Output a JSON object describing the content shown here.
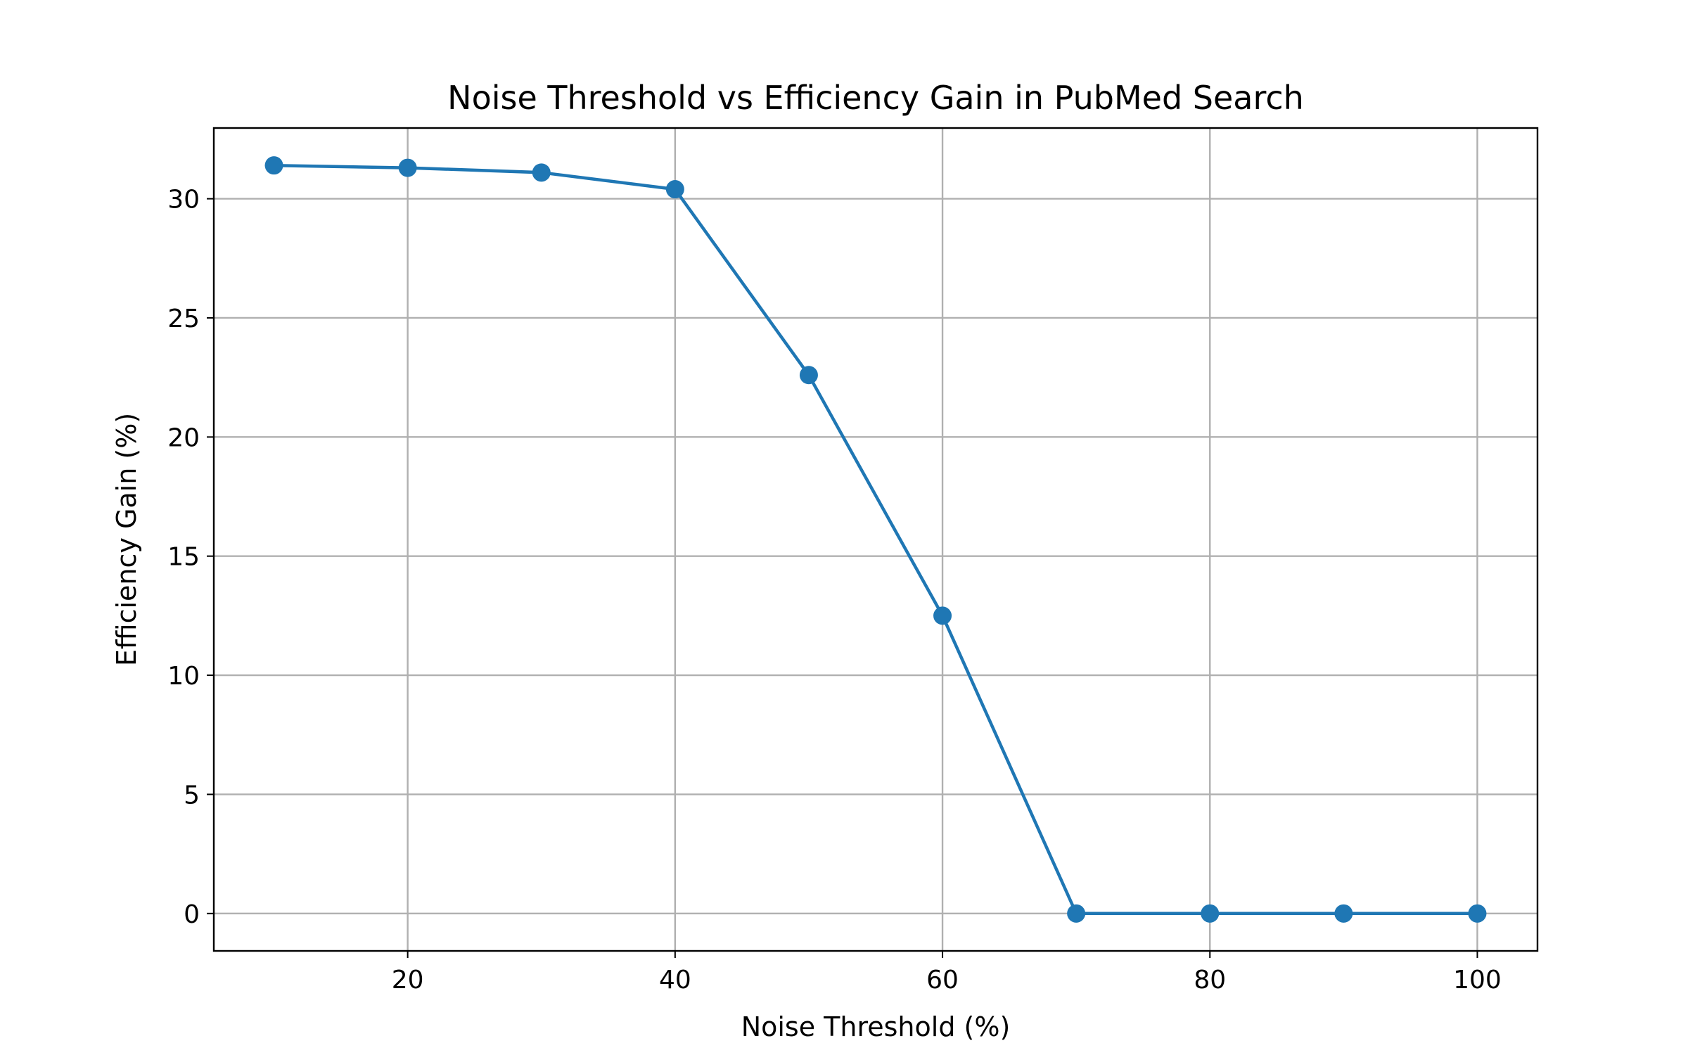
{
  "chart_data": {
    "type": "line",
    "title": "Noise Threshold vs Efficiency Gain in PubMed Search",
    "xlabel": "Noise Threshold (%)",
    "ylabel": "Efficiency Gain (%)",
    "x": [
      10,
      20,
      30,
      40,
      50,
      60,
      70,
      80,
      90,
      100
    ],
    "series": [
      {
        "values": [
          31.4,
          31.3,
          31.1,
          30.4,
          22.6,
          12.5,
          0,
          0,
          0,
          0
        ],
        "color": "#1f77b4",
        "marker": "circle"
      }
    ],
    "xlim": [
      5.5,
      104.5
    ],
    "ylim": [
      -1.57,
      32.97
    ],
    "xticks": [
      20,
      40,
      60,
      80,
      100
    ],
    "yticks": [
      0,
      5,
      10,
      15,
      20,
      25,
      30
    ],
    "xtick_labels": [
      "20",
      "40",
      "60",
      "80",
      "100"
    ],
    "ytick_labels": [
      "0",
      "5",
      "10",
      "15",
      "20",
      "25",
      "30"
    ],
    "grid": true,
    "legend": "none"
  }
}
